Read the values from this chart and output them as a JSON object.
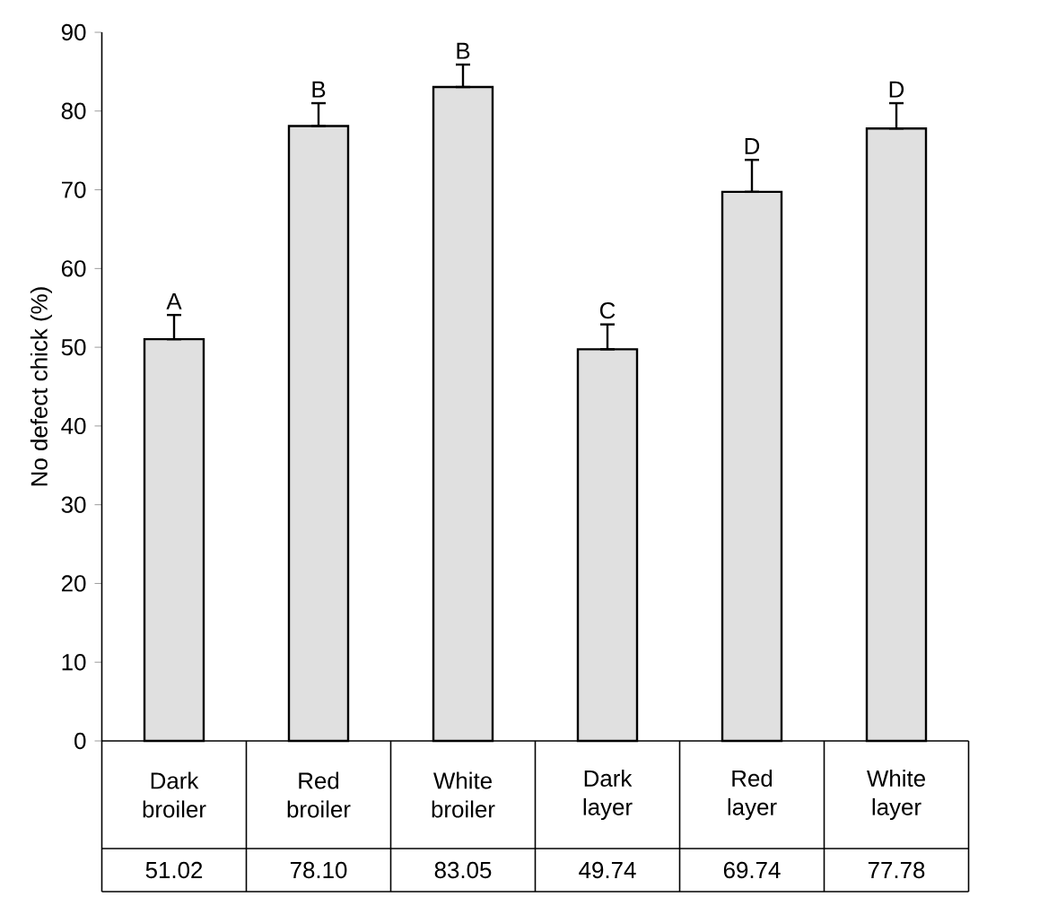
{
  "chart_data": {
    "type": "bar",
    "ylabel": "No defect chick (%)",
    "categories": [
      "Dark broiler",
      "Red broiler",
      "White broiler",
      "Dark layer",
      "Red layer",
      "White layer"
    ],
    "values": [
      51.02,
      78.1,
      83.05,
      49.74,
      69.74,
      77.78
    ],
    "errors": [
      [
        51.02,
        54.1
      ],
      [
        78.1,
        81.0
      ],
      [
        83.05,
        85.9
      ],
      [
        49.74,
        52.9
      ],
      [
        69.74,
        73.8
      ],
      [
        77.78,
        81.0
      ]
    ],
    "color": "#e0e0e0",
    "value_labels": [
      "51.02",
      "78.10",
      "83.05",
      "49.74",
      "69.74",
      "77.78"
    ],
    "ylim": [
      0,
      90
    ],
    "yticks": [
      0,
      10,
      20,
      30,
      40,
      50,
      60,
      70,
      80,
      90
    ],
    "grid": false,
    "annotations": [
      "A",
      "B",
      "B",
      "C",
      "D",
      "D"
    ]
  }
}
